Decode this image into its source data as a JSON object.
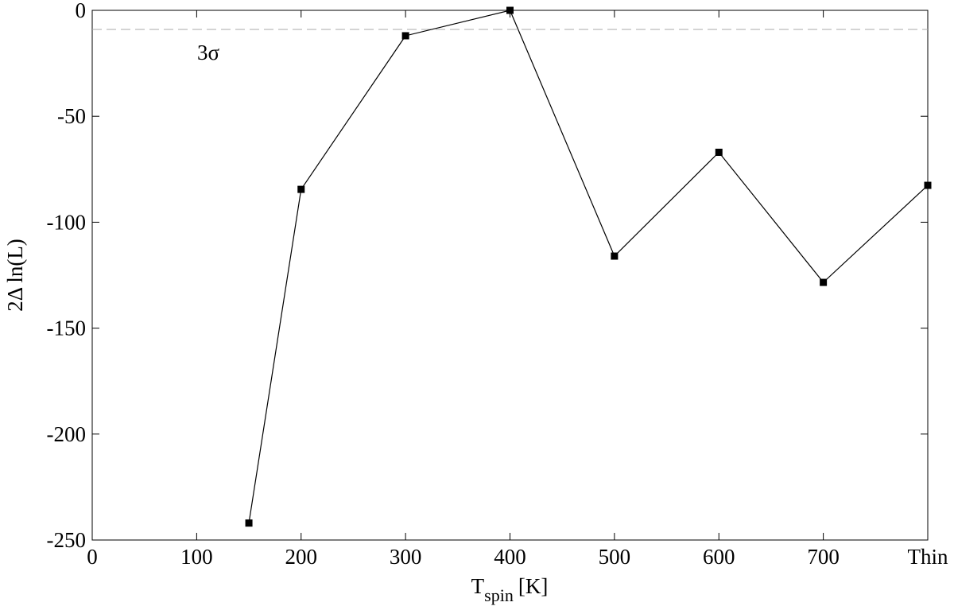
{
  "chart_data": {
    "type": "line",
    "x": [
      150,
      200,
      300,
      400,
      500,
      600,
      700,
      800
    ],
    "series": [
      {
        "color": "#000000",
        "marker": "square",
        "values": [
          -242,
          -84.5,
          -12,
          0,
          -116,
          -67,
          -128.4,
          -82.6
        ]
      }
    ],
    "xlim": [
      0,
      800
    ],
    "xticks": [
      0,
      100,
      200,
      300,
      400,
      500,
      600,
      700,
      {
        "value": 800,
        "label": "Thin"
      }
    ],
    "ylim": [
      -250,
      0
    ],
    "yticks": [
      -250,
      -200,
      -150,
      -100,
      -50,
      0
    ],
    "xlabel": {
      "main": "T",
      "sub": "spin",
      "unit": "[K]"
    },
    "ylabel": "2Δ ln(L)",
    "reference_line": {
      "value": -9,
      "label": "3σ",
      "color": "#aaaaaa",
      "style": "dashed"
    },
    "grid": false
  }
}
